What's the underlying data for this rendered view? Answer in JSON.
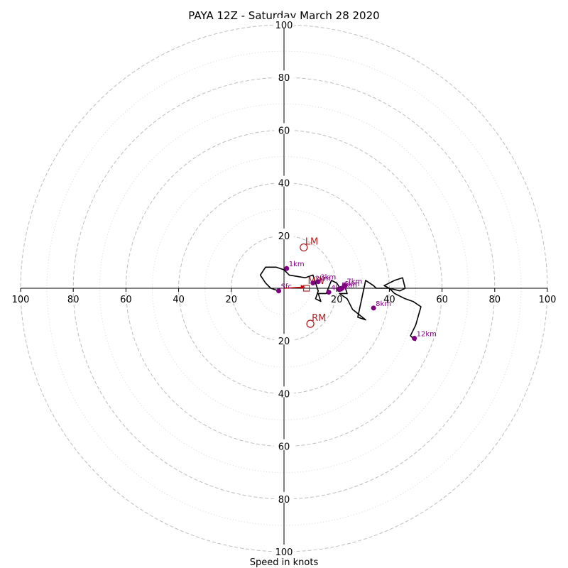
{
  "chart_data": {
    "type": "hodograph",
    "title": "PAYA 12Z - Saturday March 28 2020",
    "xlabel": "Speed in knots",
    "rings_major": [
      20,
      40,
      60,
      80,
      100
    ],
    "rings_minor": [
      10,
      30,
      50,
      70,
      90
    ],
    "range": 100,
    "ticks": {
      "x_left": [
        "100",
        "80",
        "60",
        "40",
        "20"
      ],
      "x_right": [
        "20",
        "40",
        "60",
        "80",
        "100"
      ],
      "y_up": [
        "20",
        "40",
        "60",
        "80",
        "100"
      ],
      "y_down": [
        "20",
        "40",
        "60",
        "80",
        "100"
      ]
    },
    "hodograph": {
      "u": [
        -2,
        -5,
        -7,
        -9,
        -7,
        -3,
        0,
        2,
        8,
        11,
        12,
        13,
        12,
        14,
        13,
        16,
        18,
        20,
        22,
        20,
        23,
        24,
        21,
        24,
        26,
        31,
        28,
        31,
        34,
        35,
        40,
        38,
        42,
        45,
        46,
        44,
        40,
        42,
        46,
        49,
        52,
        50,
        48,
        49,
        50
      ],
      "v": [
        -1,
        0,
        2,
        5,
        8,
        8,
        7,
        5,
        4,
        5,
        2,
        -1,
        -4,
        -5,
        -2,
        -2,
        3,
        2,
        -1,
        0,
        1,
        -2,
        -2,
        -4,
        -8,
        -12,
        -11,
        3,
        1,
        0,
        0,
        1,
        3,
        4,
        0,
        -1,
        0,
        -2,
        -4,
        -5,
        -7,
        -14,
        -18,
        -19,
        -20
      ]
    },
    "height_markers": [
      {
        "label": "Sfc",
        "u": -2,
        "v": -1
      },
      {
        "label": "1km",
        "u": 1,
        "v": 7.5
      },
      {
        "label": "2km",
        "u": 11,
        "v": 2
      },
      {
        "label": "3km",
        "u": 13,
        "v": 2.5
      },
      {
        "label": "4km",
        "u": 17,
        "v": -1.5
      },
      {
        "label": "5km",
        "u": 21,
        "v": -0.5
      },
      {
        "label": "6km",
        "u": 22,
        "v": 0
      },
      {
        "label": "7km",
        "u": 23,
        "v": 1
      },
      {
        "label": "8km",
        "u": 34,
        "v": -7.5
      },
      {
        "label": "12km",
        "u": 49.5,
        "v": -19
      }
    ],
    "storm_motion": [
      {
        "label": "LM",
        "u": 7.5,
        "v": 15.5
      },
      {
        "label": "RM",
        "u": 10,
        "v": -13.5
      }
    ],
    "mean_wind_label": "MW",
    "mean_wind_arrow": {
      "u0": 0,
      "v0": 0,
      "u1": 8,
      "v1": 0.5
    },
    "mean_wind_marker": {
      "u": 8.5,
      "v": 0
    }
  }
}
